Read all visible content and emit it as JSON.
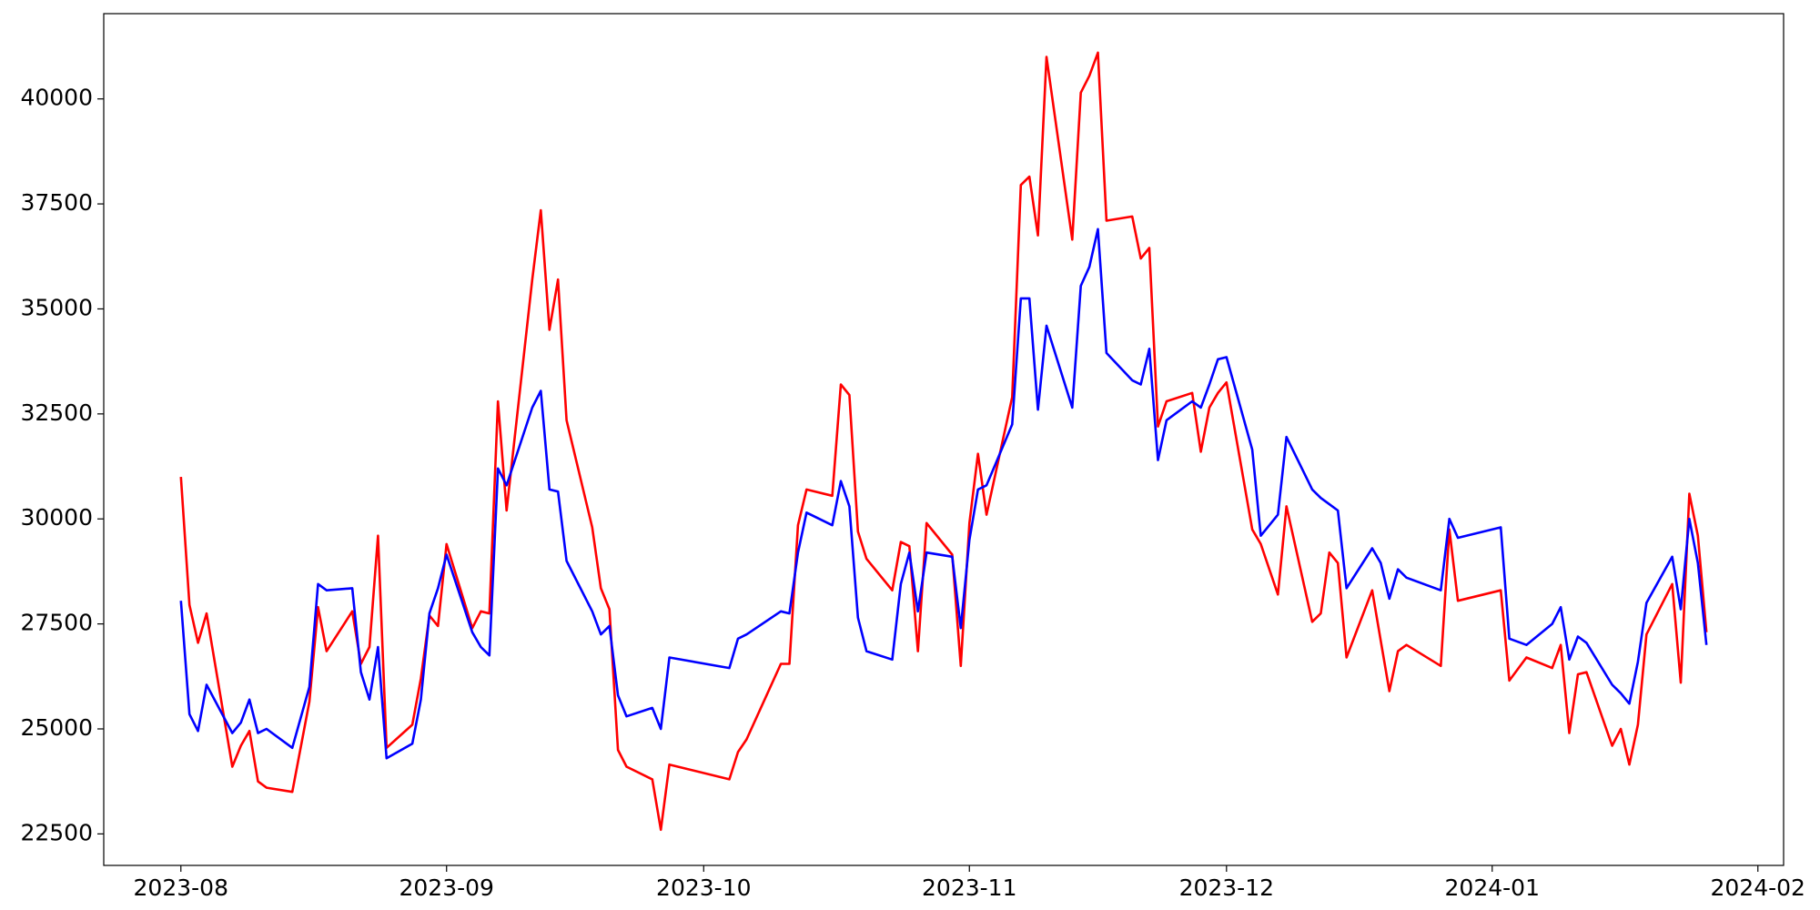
{
  "chart_data": {
    "type": "line",
    "x": [
      "2023-08-01",
      "2023-08-02",
      "2023-08-03",
      "2023-08-04",
      "2023-08-07",
      "2023-08-08",
      "2023-08-09",
      "2023-08-10",
      "2023-08-11",
      "2023-08-14",
      "2023-08-16",
      "2023-08-17",
      "2023-08-18",
      "2023-08-21",
      "2023-08-22",
      "2023-08-23",
      "2023-08-24",
      "2023-08-25",
      "2023-08-28",
      "2023-08-29",
      "2023-08-30",
      "2023-08-31",
      "2023-09-01",
      "2023-09-04",
      "2023-09-05",
      "2023-09-06",
      "2023-09-07",
      "2023-09-08",
      "2023-09-11",
      "2023-09-12",
      "2023-09-13",
      "2023-09-14",
      "2023-09-15",
      "2023-09-18",
      "2023-09-19",
      "2023-09-20",
      "2023-09-21",
      "2023-09-22",
      "2023-09-25",
      "2023-09-26",
      "2023-09-27",
      "2023-10-04",
      "2023-10-05",
      "2023-10-06",
      "2023-10-10",
      "2023-10-11",
      "2023-10-12",
      "2023-10-13",
      "2023-10-16",
      "2023-10-17",
      "2023-10-18",
      "2023-10-19",
      "2023-10-20",
      "2023-10-23",
      "2023-10-24",
      "2023-10-25",
      "2023-10-26",
      "2023-10-27",
      "2023-10-30",
      "2023-10-31",
      "2023-11-01",
      "2023-11-02",
      "2023-11-03",
      "2023-11-06",
      "2023-11-07",
      "2023-11-08",
      "2023-11-09",
      "2023-11-10",
      "2023-11-13",
      "2023-11-14",
      "2023-11-15",
      "2023-11-16",
      "2023-11-17",
      "2023-11-20",
      "2023-11-21",
      "2023-11-22",
      "2023-11-23",
      "2023-11-24",
      "2023-11-27",
      "2023-11-28",
      "2023-11-29",
      "2023-11-30",
      "2023-12-01",
      "2023-12-04",
      "2023-12-05",
      "2023-12-07",
      "2023-12-08",
      "2023-12-11",
      "2023-12-12",
      "2023-12-13",
      "2023-12-14",
      "2023-12-15",
      "2023-12-18",
      "2023-12-19",
      "2023-12-20",
      "2023-12-21",
      "2023-12-22",
      "2023-12-26",
      "2023-12-27",
      "2023-12-28",
      "2024-01-02",
      "2024-01-03",
      "2024-01-05",
      "2024-01-08",
      "2024-01-09",
      "2024-01-10",
      "2024-01-11",
      "2024-01-12",
      "2024-01-15",
      "2024-01-16",
      "2024-01-17",
      "2024-01-18",
      "2024-01-19",
      "2024-01-22",
      "2024-01-23",
      "2024-01-24",
      "2024-01-25",
      "2024-01-26"
    ],
    "series": [
      {
        "color": "#ff0000",
        "values": [
          31000,
          27950,
          27050,
          27750,
          24100,
          24600,
          24950,
          23750,
          23600,
          23500,
          25650,
          27900,
          26850,
          27800,
          26550,
          26950,
          29600,
          24550,
          25100,
          26200,
          27700,
          27450,
          29400,
          27400,
          27800,
          27750,
          32800,
          30200,
          35700,
          37350,
          34500,
          35700,
          32350,
          29800,
          28350,
          27850,
          24500,
          24100,
          23800,
          22600,
          24150,
          23800,
          24450,
          24750,
          26550,
          26550,
          29850,
          30700,
          30550,
          33200,
          32950,
          29700,
          29050,
          28300,
          29450,
          29350,
          26850,
          29900,
          29150,
          26500,
          29900,
          31550,
          30100,
          32900,
          37950,
          38150,
          36750,
          41000,
          36650,
          40150,
          40550,
          41100,
          37100,
          37200,
          36200,
          36450,
          32200,
          32800,
          33000,
          31600,
          32650,
          33000,
          33250,
          29750,
          29400,
          28200,
          30300,
          27550,
          27750,
          29200,
          28950,
          26700,
          28300,
          27100,
          25900,
          26850,
          27000,
          26500,
          29750,
          28050,
          28300,
          26150,
          26700,
          26450,
          27000,
          24900,
          26300,
          26350,
          24600,
          25000,
          24150,
          25100,
          27250,
          28450,
          26100,
          30600,
          29600,
          27300
        ]
      },
      {
        "color": "#0000ff",
        "values": [
          28050,
          25350,
          24950,
          26050,
          24900,
          25150,
          25700,
          24900,
          25000,
          24550,
          26000,
          28450,
          28300,
          28350,
          26350,
          25700,
          26950,
          24300,
          24650,
          25700,
          27750,
          28350,
          29150,
          27300,
          26950,
          26750,
          31200,
          30800,
          32650,
          33050,
          30700,
          30650,
          29000,
          27800,
          27250,
          27450,
          25800,
          25300,
          25500,
          25000,
          26700,
          26450,
          27150,
          27250,
          27800,
          27750,
          29200,
          30150,
          29850,
          30900,
          30300,
          27650,
          26850,
          26650,
          28450,
          29200,
          27800,
          29200,
          29100,
          27400,
          29500,
          30700,
          30800,
          32250,
          35250,
          35250,
          32600,
          34600,
          32650,
          35550,
          36000,
          36900,
          33950,
          33300,
          33200,
          34050,
          31400,
          32350,
          32800,
          32650,
          33200,
          33800,
          33850,
          31650,
          29600,
          30100,
          31950,
          30700,
          30500,
          30350,
          30200,
          28350,
          29300,
          28950,
          28100,
          28800,
          28600,
          28300,
          30000,
          29550,
          29800,
          27150,
          27000,
          27500,
          27900,
          26650,
          27200,
          27050,
          26050,
          25850,
          25600,
          26600,
          28000,
          29100,
          27850,
          30000,
          28950,
          27000
        ]
      }
    ],
    "xlim": [
      "2023-07-23",
      "2024-02-04"
    ],
    "xticks": [
      "2023-08",
      "2023-09",
      "2023-10",
      "2023-11",
      "2023-12",
      "2024-01",
      "2024-02"
    ],
    "ylim": [
      21750,
      42030
    ],
    "yticks": [
      22500,
      25000,
      27500,
      30000,
      32500,
      35000,
      37500,
      40000
    ],
    "grid": false
  }
}
